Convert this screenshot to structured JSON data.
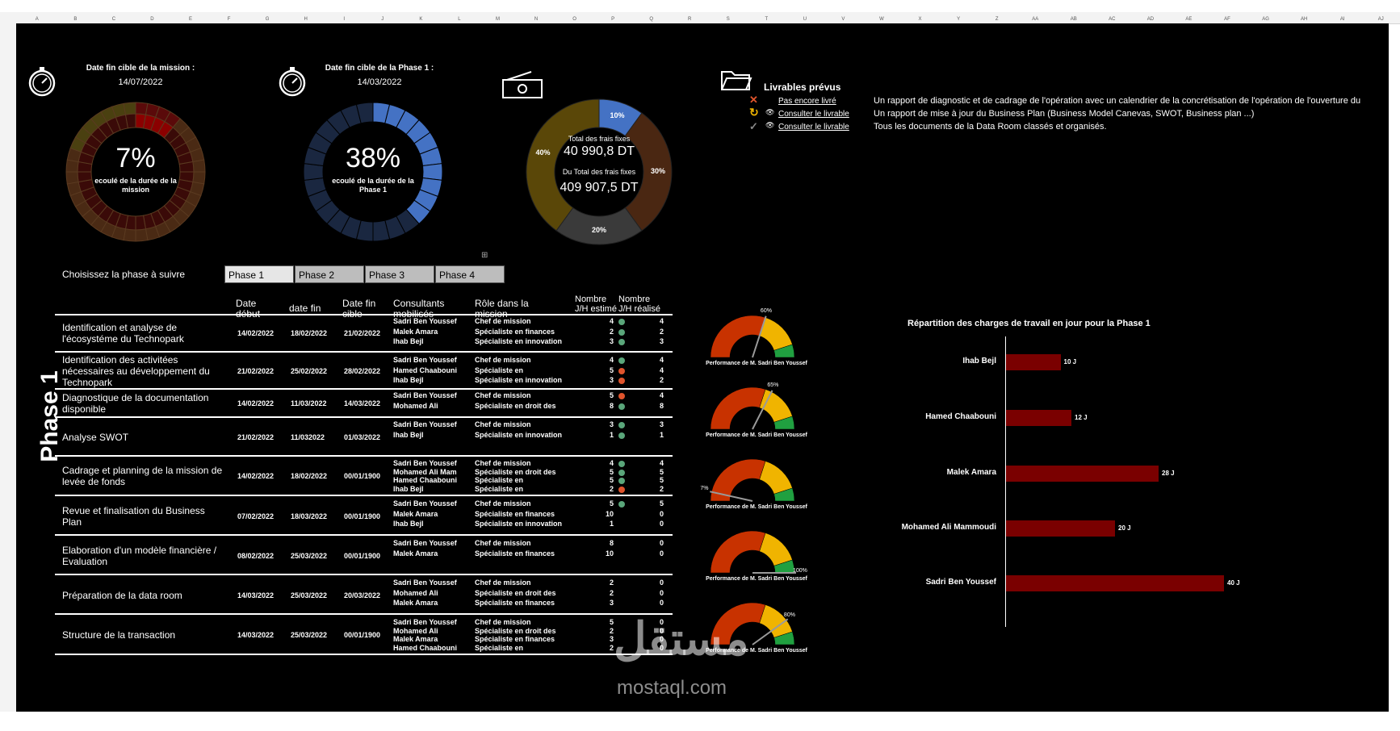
{
  "header": {
    "mission_label": "Date fin cible de la mission :",
    "mission_date": "14/07/2022",
    "phase_label": "Date fin cible de la Phase 1 :",
    "phase_date": "14/03/2022"
  },
  "donut_mission": {
    "pct": "7%",
    "sub": "ecoulé de la durée de la mission",
    "value": 7
  },
  "donut_phase": {
    "pct": "38%",
    "sub": "ecoulé de la durée de la Phase 1",
    "value": 38
  },
  "donut_costs": {
    "total_label": "Total des frais fixes",
    "total_value": "40 990,8 DT",
    "of_total_label": "Du Total des frais fixes",
    "of_total_value": "409 907,5 DT",
    "slices": [
      {
        "label": "10%",
        "value": 10,
        "color": "#4472c4"
      },
      {
        "label": "30%",
        "value": 30,
        "color": "#4a2712"
      },
      {
        "label": "20%",
        "value": 20,
        "color": "#3a3a3a"
      },
      {
        "label": "40%",
        "value": 40,
        "color": "#5a4708"
      }
    ]
  },
  "livrables": {
    "title": "Livrables prévus",
    "items": [
      {
        "status": "Pas encore livré",
        "icon": "cross-icon",
        "desc": "Un rapport de diagnostic et de cadrage de l'opération avec un calendrier de la concrétisation de l'opération de l'ouverture du"
      },
      {
        "status": "Consulter le livrable",
        "icon": "refresh-icon",
        "desc": "Un rapport de mise à jour du Business Plan (Business Model Canevas, SWOT, Business plan ...)"
      },
      {
        "status": "Consulter le livrable",
        "icon": "check-icon",
        "desc": "Tous les documents de la Data Room classés et organisés."
      }
    ]
  },
  "phase_selector": {
    "label": "Choisissez la phase à suivre",
    "buttons": [
      "Phase 1",
      "Phase 2",
      "Phase 3",
      "Phase 4"
    ],
    "side_title": "Phase 1"
  },
  "table": {
    "headers": [
      "Date début",
      "date fin",
      "Date fin cible",
      "Consultants mobilisés",
      "Rôle dans la mission",
      "Nombre J/H estimé",
      "Nombre J/H réalisé"
    ],
    "rows": [
      {
        "task": "Identification et analyse de l'écosystéme du Technopark",
        "start": "14/02/2022",
        "end": "18/02/2022",
        "target": "21/02/2022",
        "consultants": [
          "Sadri Ben Youssef",
          "Malek Amara",
          "Ihab Bejl"
        ],
        "roles": [
          "Chef de mission",
          "Spécialiste en finances",
          "Spécialiste en innovation"
        ],
        "est": [
          "4",
          "2",
          "3"
        ],
        "dots": [
          "green",
          "green",
          "green"
        ],
        "real": [
          "4",
          "2",
          "3"
        ]
      },
      {
        "task": "Identification des activitées nécessaires au développement du Technopark",
        "start": "21/02/2022",
        "end": "25/02/2022",
        "target": "28/02/2022",
        "consultants": [
          "Sadri Ben Youssef",
          "Hamed Chaabouni",
          "Ihab Bejl"
        ],
        "roles": [
          "Chef de mission",
          "Spécialiste en",
          "Spécialiste en innovation"
        ],
        "est": [
          "4",
          "5",
          "3"
        ],
        "dots": [
          "green",
          "orange",
          "orange"
        ],
        "real": [
          "4",
          "4",
          "2"
        ]
      },
      {
        "task": "Diagnostique de la documentation disponible",
        "start": "14/02/2022",
        "end": "11/03/2022",
        "target": "14/03/2022",
        "consultants": [
          "Sadri Ben Youssef",
          "Mohamed Ali"
        ],
        "roles": [
          "Chef de mission",
          "Spécialiste en droit des"
        ],
        "est": [
          "5",
          "8"
        ],
        "dots": [
          "orange",
          "green"
        ],
        "real": [
          "4",
          "8"
        ]
      },
      {
        "task": "Analyse SWOT",
        "start": "21/02/2022",
        "end": "11/032022",
        "target": "01/03/2022",
        "consultants": [
          "Sadri Ben Youssef",
          "Ihab Bejl"
        ],
        "roles": [
          "Chef de mission",
          "Spécialiste en innovation"
        ],
        "est": [
          "3",
          "1"
        ],
        "dots": [
          "green",
          "green"
        ],
        "real": [
          "3",
          "1"
        ]
      },
      {
        "task": "Cadrage et planning de la mission de levée de fonds",
        "start": "14/02/2022",
        "end": "18/02/2022",
        "target": "00/01/1900",
        "consultants": [
          "Sadri Ben Youssef",
          "Mohamed Ali Mam",
          "Hamed Chaabouni",
          "Ihab Bejl"
        ],
        "roles": [
          "Chef de mission",
          "Spécialiste en droit des",
          "Spécialiste en",
          "Spécialiste en"
        ],
        "est": [
          "4",
          "5",
          "5",
          "2"
        ],
        "dots": [
          "green",
          "green",
          "green",
          "orange"
        ],
        "real": [
          "4",
          "5",
          "5",
          "2"
        ]
      },
      {
        "task": "Revue et finalisation du Business Plan",
        "start": "07/02/2022",
        "end": "18/03/2022",
        "target": "00/01/1900",
        "consultants": [
          "Sadri Ben Youssef",
          "Malek Amara",
          "Ihab Bejl"
        ],
        "roles": [
          "Chef de mission",
          "Spécialiste en finances",
          "Spécialiste en innovation"
        ],
        "est": [
          "5",
          "10",
          "1"
        ],
        "dots": [
          "green",
          "",
          ""
        ],
        "real": [
          "5",
          "0",
          "0"
        ]
      },
      {
        "task": "Elaboration d'un modèle financière / Evaluation",
        "start": "08/02/2022",
        "end": "25/03/2022",
        "target": "00/01/1900",
        "consultants": [
          "Sadri Ben Youssef",
          "Malek Amara"
        ],
        "roles": [
          "Chef de mission",
          "Spécialiste en finances"
        ],
        "est": [
          "8",
          "10"
        ],
        "dots": [
          "",
          ""
        ],
        "real": [
          "0",
          "0"
        ]
      },
      {
        "task": "Préparation de la data room",
        "start": "14/03/2022",
        "end": "25/03/2022",
        "target": "20/03/2022",
        "consultants": [
          "Sadri Ben Youssef",
          "Mohamed Ali",
          "Malek Amara"
        ],
        "roles": [
          "Chef de mission",
          "Spécialiste en droit des",
          "Spécialiste en finances"
        ],
        "est": [
          "2",
          "2",
          "3"
        ],
        "dots": [
          "",
          "",
          ""
        ],
        "real": [
          "0",
          "0",
          "0"
        ]
      },
      {
        "task": "Structure de la transaction",
        "start": "14/03/2022",
        "end": "25/03/2022",
        "target": "00/01/1900",
        "consultants": [
          "Sadri Ben Youssef",
          "Mohamed Ali",
          "Malek Amara",
          "Hamed Chaabouni"
        ],
        "roles": [
          "Chef de mission",
          "Spécialiste en droit des",
          "Spécialiste en finances",
          "Spécialiste en"
        ],
        "est": [
          "5",
          "2",
          "3",
          "2"
        ],
        "dots": [
          "",
          "",
          "",
          ""
        ],
        "real": [
          "0",
          "0",
          "0",
          "0"
        ]
      }
    ]
  },
  "gauges": [
    {
      "label": "Performance de M. Sadri Ben Youssef",
      "value": 60,
      "pct": "60%"
    },
    {
      "label": "Performance de M. Sadri Ben Youssef",
      "value": 65,
      "pct": "65%"
    },
    {
      "label": "Performance de M. Sadri Ben Youssef",
      "value": 7,
      "pct": "7%"
    },
    {
      "label": "Performance de M. Sadri Ben Youssef",
      "value": 100,
      "pct": "100%"
    },
    {
      "label": "Performance de M. Sadri Ben Youssef",
      "value": 80,
      "pct": "80%"
    }
  ],
  "chart_data": {
    "type": "bar",
    "title": "Répartition des charges de travail en jour pour la Phase 1",
    "categories": [
      "Ihab Bejl",
      "Hamed Chaabouni",
      "Malek Amara",
      "Mohamed Ali Mammoudi",
      "Sadri Ben Youssef"
    ],
    "values": [
      10,
      12,
      28,
      20,
      40
    ],
    "value_labels": [
      "10 J",
      "12 J",
      "28 J",
      "20 J",
      "40 J"
    ],
    "orientation": "horizontal",
    "color": "#7a0000"
  },
  "columns": [
    "A",
    "B",
    "C",
    "D",
    "E",
    "F",
    "G",
    "H",
    "I",
    "J",
    "K",
    "L",
    "M",
    "N",
    "O",
    "P",
    "Q",
    "R",
    "S",
    "T",
    "U",
    "V",
    "W",
    "X",
    "Y",
    "Z",
    "AA",
    "AB",
    "AC",
    "AD",
    "AE",
    "AF",
    "AG",
    "AH",
    "AI",
    "AJ"
  ]
}
